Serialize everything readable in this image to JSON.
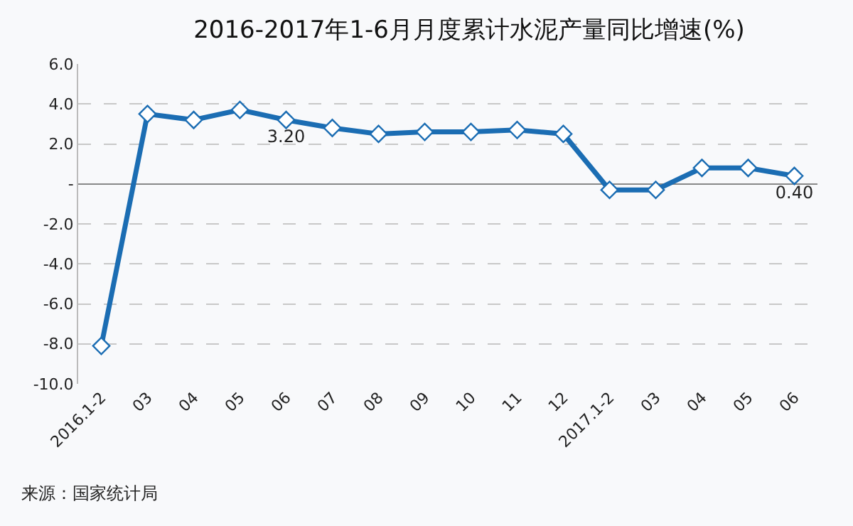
{
  "chart_data": {
    "type": "line",
    "title": "2016-2017年1-6月月度累计水泥产量同比增速(%)",
    "categories": [
      "2016.1-2",
      "03",
      "04",
      "05",
      "06",
      "07",
      "08",
      "09",
      "10",
      "11",
      "12",
      "2017.1-2",
      "03",
      "04",
      "05",
      "06"
    ],
    "series": [
      {
        "color": "#1b6db3",
        "values": [
          -8.1,
          3.5,
          3.2,
          3.7,
          3.2,
          2.8,
          2.5,
          2.6,
          2.6,
          2.7,
          2.5,
          -0.3,
          -0.3,
          0.8,
          0.8,
          0.4
        ],
        "value_labels": [
          null,
          null,
          null,
          null,
          "3.20",
          null,
          null,
          null,
          null,
          null,
          null,
          null,
          null,
          null,
          null,
          "0.40"
        ]
      }
    ],
    "ylim": [
      -10,
      6
    ],
    "yticks": [
      {
        "value": 6,
        "label": "6.0"
      },
      {
        "value": 4,
        "label": "4.0"
      },
      {
        "value": 2,
        "label": "2.0"
      },
      {
        "value": 0,
        "label": "-"
      },
      {
        "value": -2,
        "label": "-2.0"
      },
      {
        "value": -4,
        "label": "-4.0"
      },
      {
        "value": -6,
        "label": "-6.0"
      },
      {
        "value": -8,
        "label": "-8.0"
      },
      {
        "value": -10,
        "label": "-10.0"
      }
    ],
    "grid": "y",
    "marker": "diamond",
    "line_style": "solid",
    "annotations": [
      "来源：国家统计局"
    ]
  }
}
